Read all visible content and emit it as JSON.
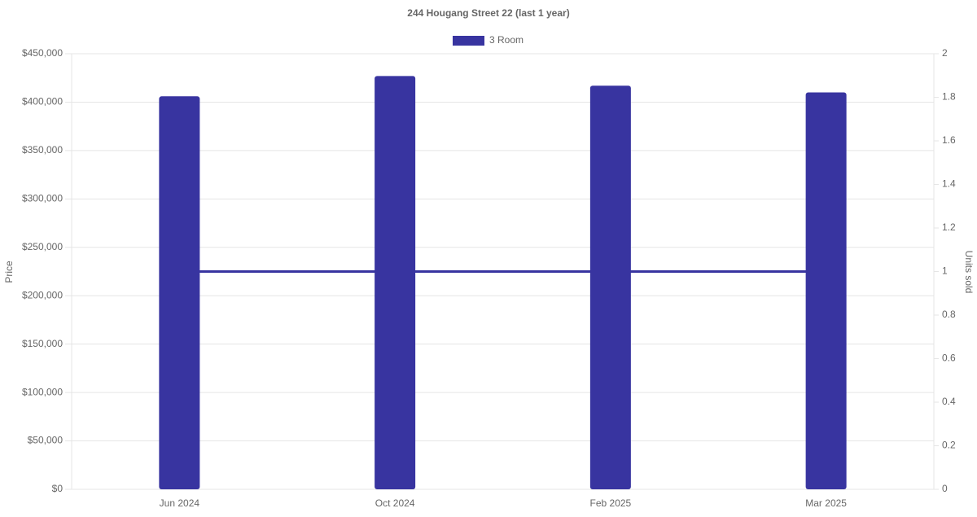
{
  "chart_data": {
    "type": "bar",
    "title": "244 Hougang Street 22 (last 1 year)",
    "categories": [
      "Jun 2024",
      "Oct 2024",
      "Feb 2025",
      "Mar 2025"
    ],
    "series": [
      {
        "name": "3 Room",
        "type": "bar",
        "color": "#3834a0",
        "values": [
          406000,
          427000,
          417000,
          410000
        ]
      },
      {
        "type": "line",
        "axis": "y2",
        "color": "#3834a0",
        "values": [
          1,
          1,
          1,
          1
        ]
      }
    ],
    "y_label": "Price",
    "y2_label": "Units sold",
    "ylim": [
      0,
      450000
    ],
    "yticks": [
      {
        "value": 0,
        "label": "$0"
      },
      {
        "value": 50000,
        "label": "$50,000"
      },
      {
        "value": 100000,
        "label": "$100,000"
      },
      {
        "value": 150000,
        "label": "$150,000"
      },
      {
        "value": 200000,
        "label": "$200,000"
      },
      {
        "value": 250000,
        "label": "$250,000"
      },
      {
        "value": 300000,
        "label": "$300,000"
      },
      {
        "value": 350000,
        "label": "$350,000"
      },
      {
        "value": 400000,
        "label": "$400,000"
      },
      {
        "value": 450000,
        "label": "$450,000"
      }
    ],
    "y2lim": [
      0,
      2
    ],
    "y2ticks": [
      0,
      0.2,
      0.4,
      0.6,
      0.8,
      1,
      1.2,
      1.4,
      1.6,
      1.8,
      2
    ],
    "grid": true,
    "legend": "top"
  }
}
